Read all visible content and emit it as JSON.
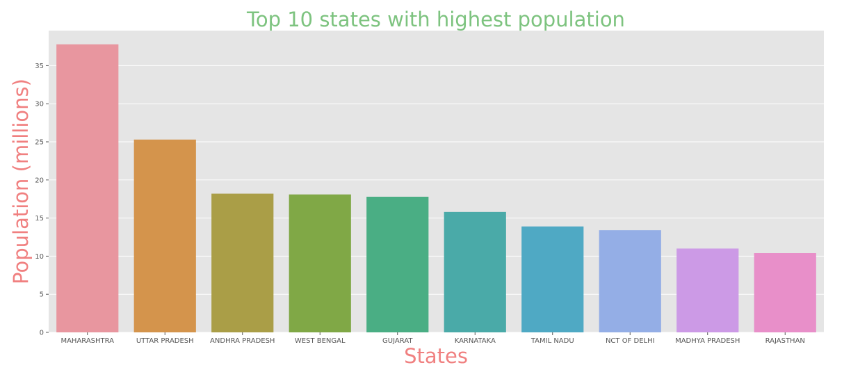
{
  "chart_data": {
    "type": "bar",
    "title": "Top 10 states with highest population",
    "xlabel": "States",
    "ylabel": "Population (millions)",
    "categories": [
      "MAHARASHTRA",
      "UTTAR PRADESH",
      "ANDHRA PRADESH",
      "WEST BENGAL",
      "GUJARAT",
      "KARNATAKA",
      "TAMIL NADU",
      "NCT OF DELHI",
      "MADHYA PRADESH",
      "RAJASTHAN"
    ],
    "values": [
      37.8,
      25.3,
      18.2,
      18.1,
      17.8,
      15.8,
      13.9,
      13.4,
      11.0,
      10.4
    ],
    "colors": [
      "#e8969f",
      "#d4944c",
      "#aa9e47",
      "#80a846",
      "#4aae84",
      "#4aaaa8",
      "#4fa9c4",
      "#94aee6",
      "#cc9ae6",
      "#e88fc9"
    ],
    "ylim": [
      0,
      39.6
    ],
    "yticks": [
      0,
      5,
      10,
      15,
      20,
      25,
      30,
      35
    ],
    "grid": true,
    "style": {
      "title_color": "#7dc37f",
      "axis_label_color": "#f08080",
      "plot_background": "#e5e5e5",
      "grid_color": "#ffffff"
    }
  }
}
